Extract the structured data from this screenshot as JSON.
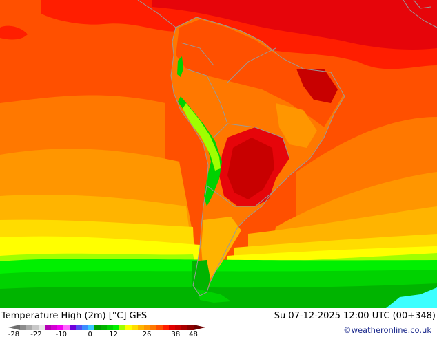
{
  "map": {
    "title": "Temperature High (2m) [°C] GFS",
    "datetime": "Su 07-12-2025 12:00 UTC (00+348)",
    "credit": "©weatheronline.co.uk"
  },
  "legend": {
    "ticks": [
      "-28",
      "-22",
      "-10",
      "0",
      "12",
      "26",
      "38",
      "48"
    ],
    "colors": [
      "#6e6e6e",
      "#8c8c8c",
      "#aaaaaa",
      "#c8c8c8",
      "#e6e6e6",
      "#b400b4",
      "#d200d2",
      "#f000f0",
      "#ff64ff",
      "#6e00dc",
      "#5050f0",
      "#3c8cff",
      "#3cc8ff",
      "#00a000",
      "#00b400",
      "#00d200",
      "#00f000",
      "#a0ff00",
      "#ffff00",
      "#ffdc00",
      "#ffb400",
      "#ff9600",
      "#ff7800",
      "#ff5000",
      "#ff1e00",
      "#e10000",
      "#c80000",
      "#aa0000",
      "#8c0000",
      "#6e0000"
    ]
  },
  "palette": {
    "deep_red": "#e6050a",
    "red": "#ff1e00",
    "orange_red": "#ff5000",
    "orange": "#ff7800",
    "light_orange": "#ff9600",
    "amber": "#ffb400",
    "gold": "#ffdc00",
    "yellow": "#ffff00",
    "lime": "#a0ff00",
    "green": "#00f000",
    "mid_green": "#00d200",
    "dark_green": "#00b400",
    "cyan": "#3cffff",
    "dark_red": "#c80000",
    "border_grey": "#9a9a9a"
  }
}
